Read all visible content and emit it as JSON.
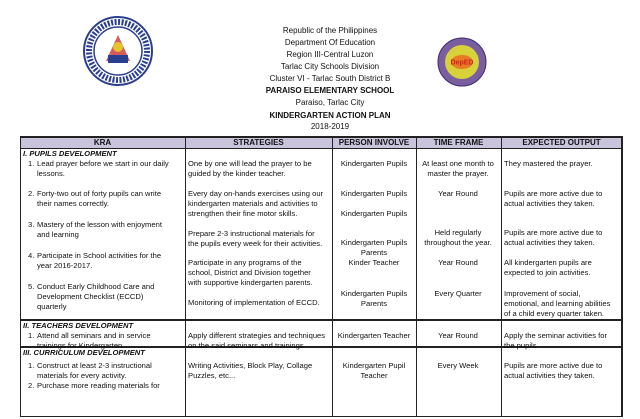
{
  "header": {
    "lines": [
      "Republic of the Philippines",
      "Department Of Education",
      "Region III-Central Luzon",
      "Tarlac City Schools Division",
      "Cluster VI -  Tarlac South District B"
    ],
    "school": "PARAISO ELEMENTARY SCHOOL",
    "address": "Paraiso, Tarlac City",
    "title": "KINDERGARTEN ACTION PLAN",
    "year": "2018-2019",
    "left_logo": "DepEd seal - Kagawaran ng Edukasyon",
    "right_logo": "DepEd"
  },
  "colors": {
    "header_bg": "#c9c3dc",
    "border": "#222222"
  },
  "table": {
    "columns": [
      "KRA",
      "STRATEGIES",
      "PERSON INVOLVE",
      "TIME FRAME",
      "EXPECTED OUTPUT"
    ],
    "sections": [
      {
        "title": "I. PUPILS DEVELOPMENT",
        "kra": [
          [
            "1.",
            "Lead prayer before we start in our daily",
            "lessons."
          ],
          [
            "2.",
            "Forty-two out of forty pupils can write",
            "their names correctly."
          ],
          [
            "3.",
            "Mastery of the lesson with enjoyment",
            "and learning"
          ],
          [
            "4.",
            "Participate in School activities for the",
            "year 2016-2017."
          ],
          [
            "5.",
            "Conduct Early Childhood Care and",
            "Development Checklist (ECCD)",
            "quarterly"
          ]
        ],
        "strategies": [
          [
            "One by one will lead the prayer to be",
            "guided by the kinder teacher."
          ],
          [
            "Every day on-hands exercises using our",
            "kindergarten materials and activities to",
            "strengthen their fine motor skills."
          ],
          [
            "Prepare 2-3 instructional materials for",
            "the pupils every week for their activities."
          ],
          [
            "Participate in any programs of the",
            "school, District and Division together",
            "with supportive kindergarten parents."
          ],
          [
            "Monitoring of implementation of ECCD."
          ]
        ],
        "persons": [
          [
            "Kindergarten Pupils"
          ],
          [
            "Kindergarten Pupils"
          ],
          [
            "Kindergarten Pupils"
          ],
          [
            "Kindergarten Pupils",
            "Parents",
            "Kinder Teacher"
          ],
          [
            "Kindergarten Pupils",
            "Parents"
          ]
        ],
        "time": [
          [
            "At least one month to",
            "master the prayer."
          ],
          [
            "Year Round"
          ],
          [
            "Held regularly",
            "throughout the year."
          ],
          [
            "Year Round"
          ],
          [
            "Every Quarter"
          ]
        ],
        "output": [
          [
            "They mastered the prayer."
          ],
          [
            "Pupils are more active due to",
            "actual activities they taken."
          ],
          [
            "Pupils are more active due to",
            "actual activities they taken."
          ],
          [
            "All kindergarten pupils are",
            "expected to join activities."
          ],
          [
            "Improvement of social,",
            "emotional, and learning abilities",
            "of a child every quarter taken."
          ]
        ]
      },
      {
        "title": "II. TEACHERS DEVELOPMENT",
        "kra": [
          [
            "1.",
            "Attend all seminars and in service",
            "trainings for Kindergarten."
          ]
        ],
        "strategies": [
          [
            "Apply different strategies and techniques",
            "on the said seminars and trainings."
          ]
        ],
        "persons": [
          [
            "Kindergarten Teacher"
          ]
        ],
        "time": [
          [
            "Year Round"
          ]
        ],
        "output": [
          [
            "Apply the seminar activities for",
            "the pupils"
          ]
        ]
      },
      {
        "title": "III. CURRICULUM DEVELOPMENT",
        "kra": [
          [
            "1.",
            "Construct at least 2-3 instructional",
            "materials for every activity."
          ],
          [
            "2.",
            "Purchase more reading materials for"
          ]
        ],
        "strategies": [
          [
            "Writing Activities, Block Play, Collage",
            "Puzzles, etc..."
          ]
        ],
        "persons": [
          [
            "Kindergarten Pupil",
            "Teacher"
          ]
        ],
        "time": [
          [
            "Every Week"
          ]
        ],
        "output": [
          [
            "Pupils are more active due to",
            "actual activities they taken."
          ]
        ]
      }
    ]
  }
}
